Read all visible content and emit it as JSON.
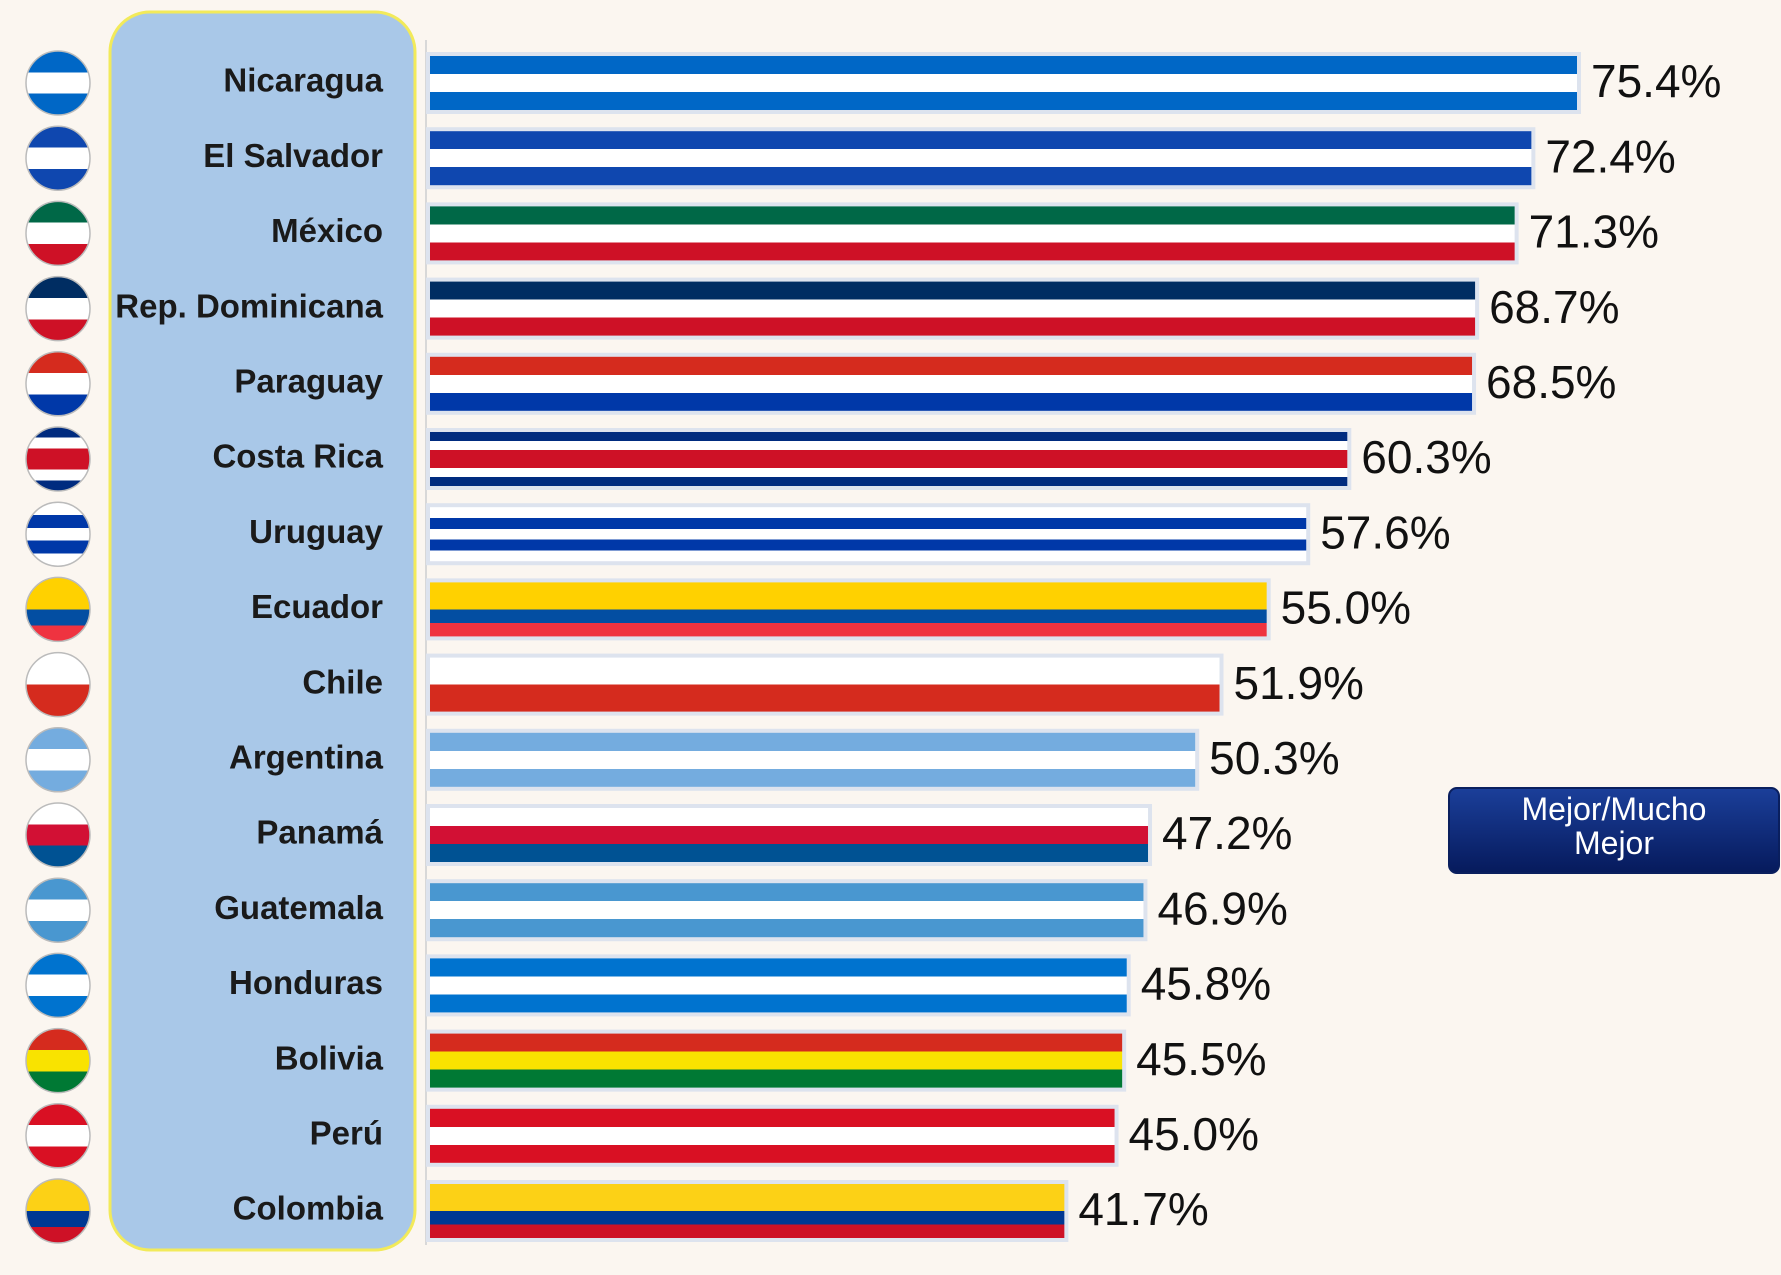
{
  "chart_data": {
    "type": "bar",
    "orientation": "horizontal",
    "categories": [
      "Nicaragua",
      "El Salvador",
      "México",
      "Rep. Dominicana",
      "Paraguay",
      "Costa Rica",
      "Uruguay",
      "Ecuador",
      "Chile",
      "Argentina",
      "Panamá",
      "Guatemala",
      "Honduras",
      "Bolivia",
      "Perú",
      "Colombia"
    ],
    "series": [
      {
        "name": "Mejor/Mucho Mejor",
        "values": [
          75.4,
          72.4,
          71.3,
          68.7,
          68.5,
          60.3,
          57.6,
          55.0,
          51.9,
          50.3,
          47.2,
          46.9,
          45.8,
          45.5,
          45.0,
          41.7
        ],
        "value_labels": [
          "75.4%",
          "72.4%",
          "71.3%",
          "68.7%",
          "68.5%",
          "60.3%",
          "57.6%",
          "55.0%",
          "51.9%",
          "50.3%",
          "47.2%",
          "46.9%",
          "45.8%",
          "45.5%",
          "45.0%",
          "41.7%"
        ]
      }
    ],
    "stripe_colors": [
      [
        "#0067c6",
        "#ffffff",
        "#0067c6"
      ],
      [
        "#0f47af",
        "#ffffff",
        "#0f47af"
      ],
      [
        "#006847",
        "#ffffff",
        "#ce1126"
      ],
      [
        "#002d62",
        "#ffffff",
        "#ce1126"
      ],
      [
        "#d52b1e",
        "#ffffff",
        "#0038a8"
      ],
      [
        "#002b7f",
        "#ffffff",
        "#ce1126",
        "#ce1126",
        "#ffffff",
        "#002b7f"
      ],
      [
        "#ffffff",
        "#0038a8",
        "#ffffff",
        "#0038a8",
        "#ffffff"
      ],
      [
        "#ffd100",
        "#ffd100",
        "#034ea2",
        "#ef3340"
      ],
      [
        "#ffffff",
        "#d52b1e"
      ],
      [
        "#74acdf",
        "#ffffff",
        "#74acdf"
      ],
      [
        "#ffffff",
        "#d21034",
        "#005293"
      ],
      [
        "#4997d0",
        "#ffffff",
        "#4997d0"
      ],
      [
        "#0073cf",
        "#ffffff",
        "#0073cf"
      ],
      [
        "#d52b1e",
        "#f9e300",
        "#007934"
      ],
      [
        "#d91023",
        "#ffffff",
        "#d91023"
      ],
      [
        "#fcd116",
        "#fcd116",
        "#003893",
        "#ce1126"
      ]
    ],
    "legend": "right"
  }
}
